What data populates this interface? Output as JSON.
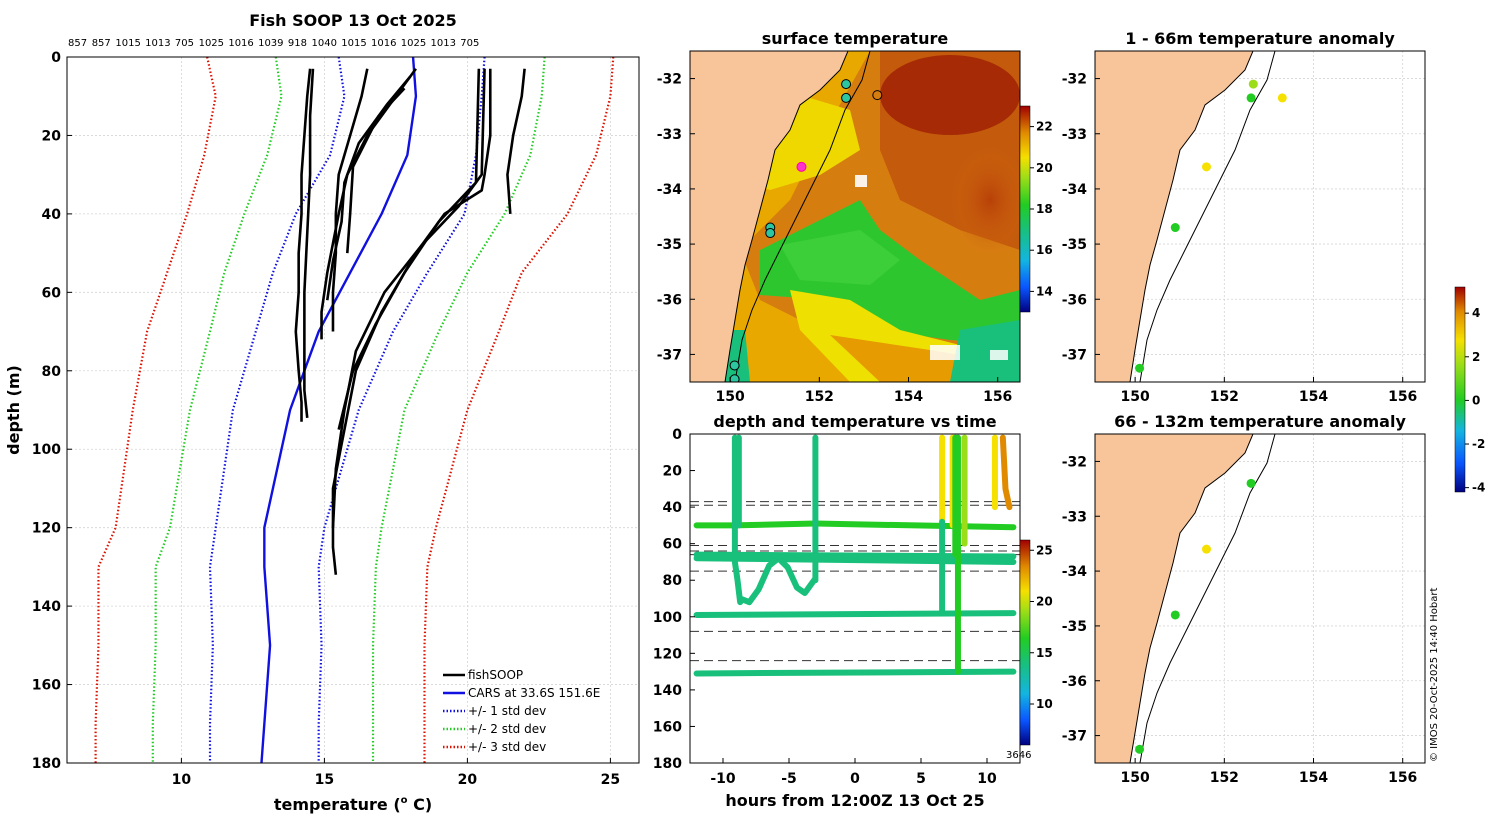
{
  "figure": {
    "title": "Fish SOOP 13 Oct 2025",
    "credit": "© IMOS 20-Oct-2025 14:40 Hobart",
    "colors": {
      "fishsoop": "#000000",
      "cars": "#1010e0",
      "std1": "#1010e0",
      "std2": "#22cc22",
      "std3": "#dd1100",
      "land": "#f8c49a"
    }
  },
  "chart_data": [
    {
      "id": "profile",
      "type": "line",
      "title": "Fish SOOP 13 Oct 2025",
      "xlabel": "temperature (°C)",
      "xlabel_main": "temperature (",
      "xlabel_sup": "o",
      "xlabel_end": " C)",
      "ylabel": "depth (m)",
      "xlim": [
        6,
        26
      ],
      "ylim": [
        0,
        180
      ],
      "xticks": [
        10,
        15,
        20,
        25
      ],
      "yticks": [
        0,
        20,
        40,
        60,
        80,
        100,
        120,
        140,
        160,
        180
      ],
      "top_labels": [
        "857",
        "857",
        "1015",
        "1013",
        "705",
        "1025",
        "1016",
        "1039",
        "918",
        "1040",
        "1015",
        "1016",
        "1025",
        "1013",
        "705"
      ],
      "legend": [
        "fishSOOP",
        "CARS at 33.6S 151.6E",
        "+/- 1 std dev",
        "+/- 2 std dev",
        "+/- 3 std dev"
      ],
      "cars": {
        "t": [
          18.1,
          18.2,
          17.9,
          17.0,
          15.9,
          14.8,
          13.8,
          12.9,
          12.9,
          13.1,
          12.9,
          12.8
        ],
        "d": [
          0,
          10,
          25,
          40,
          55,
          70,
          90,
          120,
          130,
          150,
          170,
          180
        ]
      },
      "std1": {
        "lower": {
          "t": [
            15.5,
            15.7,
            15.2,
            14.0,
            13.2,
            12.6,
            11.8,
            11.2,
            11.0,
            11.1,
            11.0,
            11.0
          ],
          "d": [
            0,
            10,
            25,
            40,
            55,
            70,
            90,
            120,
            130,
            150,
            170,
            180
          ]
        },
        "upper": {
          "t": [
            20.6,
            20.5,
            20.3,
            19.9,
            18.6,
            17.4,
            16.2,
            15.0,
            14.8,
            14.9,
            14.8,
            14.8
          ],
          "d": [
            0,
            10,
            25,
            40,
            55,
            70,
            90,
            120,
            130,
            150,
            170,
            180
          ]
        }
      },
      "std2": {
        "lower": {
          "t": [
            13.3,
            13.5,
            13.0,
            12.2,
            11.5,
            11.0,
            10.3,
            9.6,
            9.1,
            9.1,
            9.0,
            9.0
          ],
          "d": [
            0,
            10,
            25,
            40,
            55,
            70,
            90,
            120,
            130,
            150,
            170,
            180
          ]
        },
        "upper": {
          "t": [
            22.7,
            22.6,
            22.2,
            21.3,
            20.0,
            19.0,
            17.8,
            17.0,
            16.8,
            16.7,
            16.7,
            16.7
          ],
          "d": [
            0,
            10,
            25,
            40,
            55,
            70,
            90,
            120,
            130,
            150,
            170,
            180
          ]
        }
      },
      "std3": {
        "lower": {
          "t": [
            10.9,
            11.2,
            10.8,
            10.2,
            9.5,
            8.8,
            8.3,
            7.7,
            7.1,
            7.1,
            7.0,
            7.0
          ],
          "d": [
            0,
            10,
            25,
            40,
            55,
            70,
            90,
            120,
            130,
            150,
            170,
            180
          ]
        },
        "upper": {
          "t": [
            25.1,
            25.0,
            24.5,
            23.5,
            21.9,
            21.1,
            20.0,
            18.9,
            18.6,
            18.5,
            18.5,
            18.5
          ],
          "d": [
            0,
            10,
            25,
            40,
            55,
            70,
            90,
            120,
            130,
            150,
            170,
            180
          ]
        }
      },
      "fishsoop": [
        {
          "t": [
            14.5,
            14.4,
            14.3,
            14.2,
            14.2,
            14.1,
            14.1,
            14.0,
            14.1,
            14.2,
            14.2
          ],
          "d": [
            3,
            10,
            20,
            30,
            40,
            50,
            60,
            70,
            80,
            88,
            93
          ]
        },
        {
          "t": [
            14.6,
            14.5,
            14.5,
            14.4,
            14.3,
            14.3,
            14.3,
            14.4
          ],
          "d": [
            3,
            15,
            30,
            45,
            60,
            75,
            85,
            92
          ]
        },
        {
          "t": [
            16.5,
            16.3,
            15.9,
            15.5,
            15.4,
            15.4,
            15.3,
            15.3
          ],
          "d": [
            3,
            10,
            20,
            30,
            40,
            50,
            60,
            70
          ]
        },
        {
          "t": [
            18.2,
            17.5,
            16.5,
            15.8,
            15.5,
            15.1,
            14.9,
            14.9
          ],
          "d": [
            3,
            10,
            20,
            30,
            40,
            55,
            65,
            72
          ]
        },
        {
          "t": [
            18.0,
            17.2,
            16.2,
            15.7,
            15.6,
            15.3,
            15.1
          ],
          "d": [
            5,
            12,
            22,
            32,
            42,
            52,
            62
          ]
        },
        {
          "t": [
            17.8,
            16.9,
            16.0,
            15.9,
            15.8
          ],
          "d": [
            8,
            15,
            28,
            40,
            50
          ]
        },
        {
          "t": [
            20.8,
            20.8,
            20.6,
            20.5,
            19.2,
            18.2,
            17.0,
            16.1,
            15.7,
            15.3,
            15.3,
            15.4
          ],
          "d": [
            3,
            20,
            30,
            34,
            40,
            50,
            65,
            80,
            95,
            110,
            125,
            132
          ]
        },
        {
          "t": [
            20.6,
            20.5,
            19.7,
            18.4,
            17.1,
            16.1,
            15.7,
            15.4,
            15.3
          ],
          "d": [
            3,
            30,
            38,
            48,
            60,
            75,
            90,
            105,
            120
          ]
        },
        {
          "t": [
            20.4,
            20.3,
            19.0,
            17.8,
            16.8,
            16.0,
            15.5
          ],
          "d": [
            3,
            32,
            42,
            55,
            68,
            80,
            95
          ]
        },
        {
          "t": [
            22.0,
            21.9,
            21.6,
            21.4,
            21.5
          ],
          "d": [
            3,
            10,
            20,
            30,
            40
          ]
        }
      ]
    },
    {
      "id": "sst",
      "type": "heatmap",
      "title": "surface temperature",
      "xlim": [
        149.1,
        156.5
      ],
      "ylim": [
        -37.5,
        -31.5
      ],
      "xticks": [
        "150",
        "152",
        "154",
        "156"
      ],
      "yticks": [
        "-32",
        "-33",
        "-34",
        "-35",
        "-36",
        "-37"
      ],
      "colorbar": {
        "ticks": [
          "14",
          "16",
          "18",
          "20",
          "22"
        ],
        "range": [
          13,
          23
        ]
      },
      "stations": [
        {
          "lon": 152.6,
          "lat": -32.1
        },
        {
          "lon": 152.6,
          "lat": -32.35
        },
        {
          "lon": 153.3,
          "lat": -32.3
        },
        {
          "lon": 151.6,
          "lat": -33.6
        },
        {
          "lon": 150.9,
          "lat": -34.7
        },
        {
          "lon": 150.9,
          "lat": -34.8
        },
        {
          "lon": 150.1,
          "lat": -37.2
        },
        {
          "lon": 150.1,
          "lat": -37.45
        }
      ]
    },
    {
      "id": "anom1",
      "type": "scatter",
      "title": "1 - 66m temperature anomaly",
      "xlim": [
        149.1,
        156.5
      ],
      "ylim": [
        -37.5,
        -31.5
      ],
      "xticks": [
        "150",
        "152",
        "154",
        "156"
      ],
      "yticks": [
        "-32",
        "-33",
        "-34",
        "-35",
        "-36",
        "-37"
      ],
      "points": [
        {
          "lon": 152.65,
          "lat": -32.1,
          "v": 1.5
        },
        {
          "lon": 152.6,
          "lat": -32.35,
          "v": 0.3
        },
        {
          "lon": 153.3,
          "lat": -32.35,
          "v": 2.3
        },
        {
          "lon": 151.6,
          "lat": -33.6,
          "v": 2.5
        },
        {
          "lon": 150.9,
          "lat": -34.7,
          "v": 0.5
        },
        {
          "lon": 150.1,
          "lat": -37.25,
          "v": 0.6
        }
      ]
    },
    {
      "id": "anom2",
      "type": "scatter",
      "title": "66 - 132m temperature anomaly",
      "xlim": [
        149.1,
        156.5
      ],
      "ylim": [
        -37.5,
        -31.5
      ],
      "xticks": [
        "150",
        "152",
        "154",
        "156"
      ],
      "yticks": [
        "-32",
        "-33",
        "-34",
        "-35",
        "-36",
        "-37"
      ],
      "colorbar": {
        "ticks": [
          "-4",
          "-2",
          "0",
          "2",
          "4"
        ],
        "range": [
          -4.2,
          5.2
        ]
      },
      "points": [
        {
          "lon": 152.6,
          "lat": -32.4,
          "v": 0.4
        },
        {
          "lon": 151.6,
          "lat": -33.6,
          "v": 2.2
        },
        {
          "lon": 150.9,
          "lat": -34.8,
          "v": 0.3
        },
        {
          "lon": 150.1,
          "lat": -37.25,
          "v": 0.5
        }
      ]
    },
    {
      "id": "depthtime",
      "type": "scatter",
      "title": "depth and temperature vs time",
      "xlabel": "hours from 12:00Z 13 Oct 25",
      "xlim": [
        -12.5,
        12.5
      ],
      "ylim": [
        0,
        180
      ],
      "xticks": [
        -10,
        -5,
        0,
        5,
        10
      ],
      "yticks": [
        0,
        20,
        40,
        60,
        80,
        100,
        120,
        140,
        160,
        180
      ],
      "dashed_depths": [
        37,
        39,
        61,
        64,
        66,
        75,
        108,
        124
      ],
      "colorbar": {
        "ticks": [
          "10",
          "15",
          "20",
          "25"
        ],
        "range": [
          6,
          26
        ],
        "note": "3646"
      },
      "tracks": [
        {
          "t": [
            -12,
            -9.2
          ],
          "d": [
            50,
            50
          ],
          "temp": 16
        },
        {
          "t": [
            -9.2,
            -3.0
          ],
          "d": [
            50,
            49
          ],
          "temp": 16
        },
        {
          "t": [
            -3.0,
            12
          ],
          "d": [
            49,
            51
          ],
          "temp": 16
        },
        {
          "t": [
            -12,
            12
          ],
          "d": [
            66,
            67
          ],
          "temp": 15
        },
        {
          "t": [
            -12,
            12
          ],
          "d": [
            68,
            70
          ],
          "temp": 15
        },
        {
          "t": [
            -12,
            12
          ],
          "d": [
            99,
            98
          ],
          "temp": 15
        },
        {
          "t": [
            -12,
            12
          ],
          "d": [
            131,
            130
          ],
          "temp": 15
        },
        {
          "t": [
            -8.7,
            -8.0,
            -7.3,
            -6.5,
            -5.8,
            -5.1,
            -4.4,
            -3.8,
            -3.1
          ],
          "d": [
            90,
            92,
            85,
            72,
            68,
            73,
            84,
            87,
            80
          ],
          "temp": 15
        },
        {
          "t": [
            -9.1,
            -9.1,
            -8.9,
            -8.7
          ],
          "d": [
            2,
            70,
            80,
            92
          ],
          "temp": 15
        },
        {
          "t": [
            -8.8,
            -8.8
          ],
          "d": [
            2,
            50
          ],
          "temp": 14
        },
        {
          "t": [
            -3.0,
            -3.0
          ],
          "d": [
            2,
            80
          ],
          "temp": 15
        },
        {
          "t": [
            6.6,
            6.6
          ],
          "d": [
            2,
            48
          ],
          "temp": 21
        },
        {
          "t": [
            6.6,
            6.6
          ],
          "d": [
            48,
            98
          ],
          "temp": 15
        },
        {
          "t": [
            7.4,
            7.4
          ],
          "d": [
            2,
            50
          ],
          "temp": 21
        },
        {
          "t": [
            7.6,
            7.6
          ],
          "d": [
            2,
            66
          ],
          "temp": 17
        },
        {
          "t": [
            7.8,
            7.8
          ],
          "d": [
            2,
            130
          ],
          "temp": 16
        },
        {
          "t": [
            8.3,
            8.3
          ],
          "d": [
            2,
            60
          ],
          "temp": 18
        },
        {
          "t": [
            10.6,
            10.6
          ],
          "d": [
            2,
            40
          ],
          "temp": 21
        },
        {
          "t": [
            11.2,
            11.4,
            11.7
          ],
          "d": [
            2,
            30,
            40
          ],
          "temp": 23
        }
      ]
    }
  ]
}
